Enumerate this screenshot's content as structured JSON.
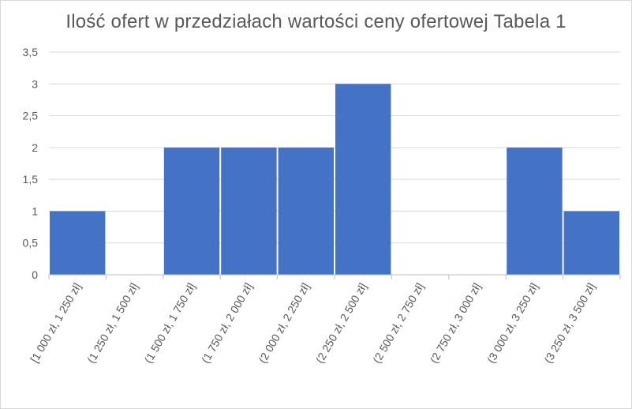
{
  "chart_data": {
    "type": "bar",
    "title": "Ilość ofert w przedziałach wartości ceny ofertowej Tabela 1",
    "xlabel": "",
    "ylabel": "",
    "categories": [
      "[1 000 zł, 1 250 zł]",
      "(1 250 zł, 1 500 zł]",
      "(1 500 zł, 1 750 zł]",
      "(1 750 zł, 2 000 zł]",
      "(2 000 zł, 2 250 zł]",
      "(2 250 zł, 2 500 zł]",
      "(2 500 zł, 2 750 zł]",
      "(2 750 zł, 3 000 zł]",
      "(3 000 zł, 3 250 zł]",
      "(3 250 zł, 3 500 zł]"
    ],
    "values": [
      1,
      0,
      2,
      2,
      2,
      3,
      0,
      0,
      2,
      1
    ],
    "ylim": [
      0,
      3.5
    ],
    "yticks": [
      "0",
      "0,5",
      "1",
      "1,5",
      "2",
      "2,5",
      "3",
      "3,5"
    ],
    "grid": true,
    "legend": "none",
    "colors": {
      "bar": "#4472C4",
      "grid": "#d9d9d9",
      "text": "#595959"
    }
  }
}
